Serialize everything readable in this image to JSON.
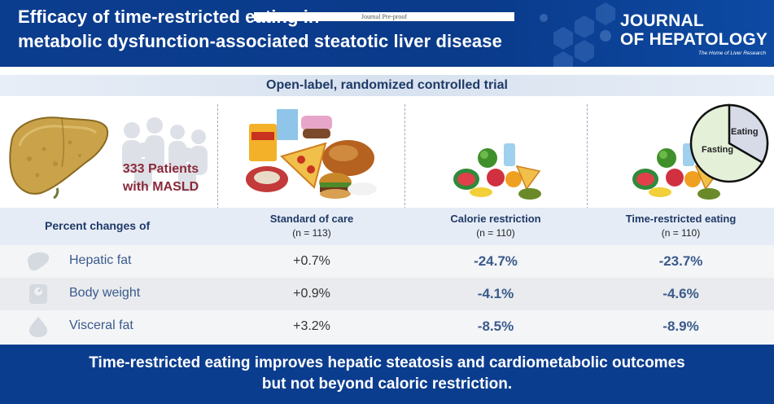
{
  "header": {
    "title_line1": "Efficacy of time-restricted eating in",
    "title_line2": "metabolic dysfunction-associated steatotic liver disease",
    "preproof": "Journal Pre-proof",
    "journal_line1": "JOURNAL",
    "journal_line2": "OF HEPATOLOGY",
    "journal_tagline": "The Home of Liver Research"
  },
  "trial": "Open-label, randomized controlled trial",
  "patients": {
    "line1": "333 Patients",
    "line2": "with MASLD"
  },
  "pie": {
    "eating": "Eating",
    "fasting": "Fasting"
  },
  "table": {
    "header_label": "Percent changes of",
    "groups": [
      {
        "name": "Standard of care",
        "n": "(n = 113)"
      },
      {
        "name": "Calorie restriction",
        "n": "(n = 110)"
      },
      {
        "name": "Time-restricted eating",
        "n": "(n = 110)"
      }
    ],
    "rows": [
      {
        "label": "Hepatic fat",
        "icon": "liver-icon",
        "values": [
          "+0.7%",
          "-24.7%",
          "-23.7%"
        ]
      },
      {
        "label": "Body weight",
        "icon": "scale-icon",
        "values": [
          "+0.9%",
          "-4.1%",
          "-4.6%"
        ]
      },
      {
        "label": "Visceral fat",
        "icon": "visceral-fat-icon",
        "values": [
          "+3.2%",
          "-8.5%",
          "-8.9%"
        ]
      }
    ]
  },
  "footer": {
    "line1": "Time-restricted eating improves hepatic steatosis and cardiometabolic outcomes",
    "line2": "but not beyond caloric restriction."
  },
  "colors": {
    "brand_blue": "#0b3d8f",
    "text_blue": "#1f3a66",
    "patients_red": "#8a2a3a"
  }
}
